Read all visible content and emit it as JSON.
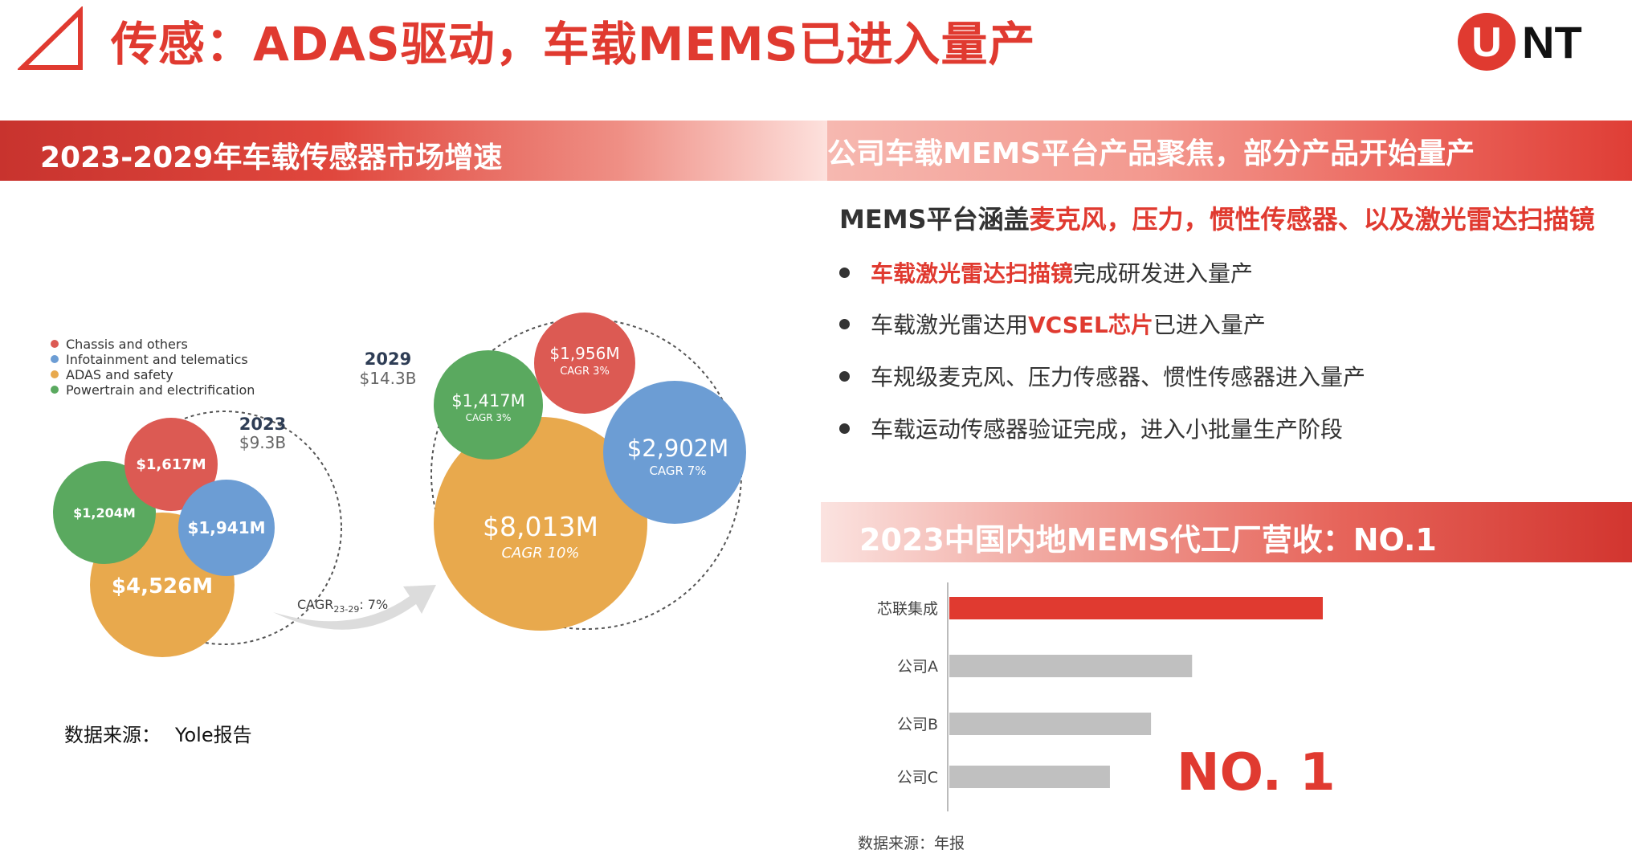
{
  "header": {
    "title": "传感：ADAS驱动，车载MEMS已进入量产",
    "logo_text": "UNT"
  },
  "left_section": {
    "banner": "2023-2029年车载传感器市场增速",
    "legend": [
      {
        "label": "Chassis and others",
        "color": "#dc5a53"
      },
      {
        "label": "Infotainment and telematics",
        "color": "#6c9dd4"
      },
      {
        "label": "ADAS and safety",
        "color": "#e8a94d"
      },
      {
        "label": "Powertrain and electrification",
        "color": "#5aa95f"
      }
    ],
    "year_2023": {
      "year": "2023",
      "total": "$9.3B"
    },
    "year_2029": {
      "year": "2029",
      "total": "$14.3B"
    },
    "bubbles_2023": {
      "chassis": "$1,617M",
      "powertrain": "$1,204M",
      "infotainment": "$1,941M",
      "adas": "$4,526M"
    },
    "bubbles_2029": {
      "chassis": "$1,956M",
      "chassis_cagr": "CAGR 3%",
      "powertrain": "$1,417M",
      "powertrain_cagr": "CAGR 3%",
      "infotainment": "$2,902M",
      "infotainment_cagr": "CAGR 7%",
      "adas": "$8,013M",
      "adas_cagr": "CAGR 10%"
    },
    "arrow": {
      "prefix": "CAGR",
      "subscript": "23-29",
      "suffix": ": 7%"
    },
    "source_label": "数据来源：",
    "source_value": "Yole报告"
  },
  "right_section": {
    "banner": "公司车载MEMS平台产品聚焦，部分产品开始量产",
    "intro_plain": "MEMS平台涵盖",
    "intro_highlight": "麦克风，压力，惯性传感器、以及激光雷达扫描镜",
    "bullets": [
      {
        "highlight": "车载激光雷达扫描镜",
        "after": "完成研发进入量产"
      },
      {
        "before": "车载激光雷达用",
        "highlight": "VCSEL芯片",
        "after": "已进入量产"
      },
      {
        "text": "车规级麦克风、压力传感器、惯性传感器进入量产"
      },
      {
        "text": "车载运动传感器验证完成，进入小批量生产阶段"
      }
    ]
  },
  "rank_section": {
    "banner": "2023中国内地MEMS代工厂营收：NO.1",
    "callout": "NO. 1",
    "source": "数据来源：年报",
    "colors": {
      "highlight": "#e03a30",
      "other": "#c0c0c0"
    }
  },
  "chart_data": {
    "type": "bar",
    "orientation": "horizontal",
    "categories": [
      "芯联集成",
      "公司A",
      "公司B",
      "公司C"
    ],
    "values": [
      100,
      65,
      54,
      43
    ],
    "xlim": [
      0,
      100
    ],
    "title": "",
    "xlabel": "",
    "ylabel": "",
    "grid": false,
    "axis_labels_printed": false
  }
}
